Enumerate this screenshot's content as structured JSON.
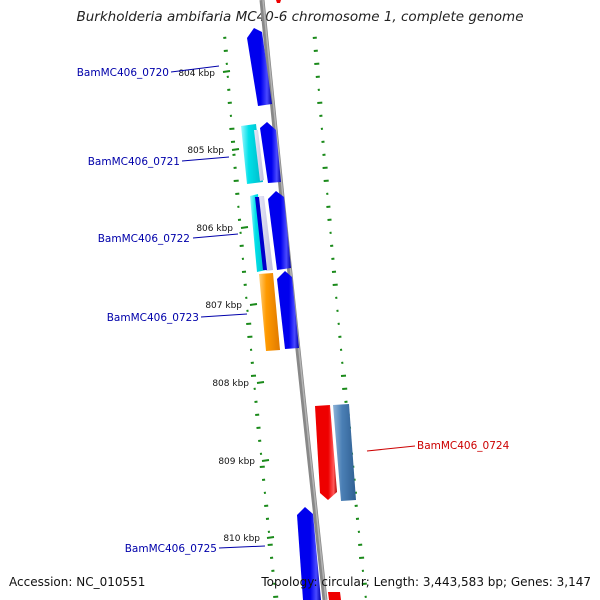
{
  "title": "Burkholderia ambifaria MC40-6 chromosome 1, complete genome",
  "accession": "Accession: NC_010551",
  "topology": "Topology: circular; Length: 3,443,583 bp; Genes: 3,147",
  "colors": {
    "backbone": "#888888",
    "gene_blue": "#0000ee",
    "gene_cyan": "#00e0e8",
    "gene_orange": "#ff9a00",
    "gene_red": "#ee0000",
    "gene_steelblue": "#4a7fb5",
    "gc_green": "#1a8a1a",
    "label_blue": "#0000aa",
    "label_red": "#cc0000",
    "tick_text": "#111111"
  },
  "position_ticks": [
    {
      "label": "804 kbp"
    },
    {
      "label": "805 kbp"
    },
    {
      "label": "806 kbp"
    },
    {
      "label": "807 kbp"
    },
    {
      "label": "808 kbp"
    },
    {
      "label": "809 kbp"
    },
    {
      "label": "810 kbp"
    }
  ],
  "gene_labels": [
    {
      "name": "BamMC406_0720",
      "color": "label_blue"
    },
    {
      "name": "BamMC406_0721",
      "color": "label_blue"
    },
    {
      "name": "BamMC406_0722",
      "color": "label_blue"
    },
    {
      "name": "BamMC406_0723",
      "color": "label_blue"
    },
    {
      "name": "BamMC406_0724",
      "color": "label_red"
    },
    {
      "name": "BamMC406_0725",
      "color": "label_blue"
    }
  ]
}
